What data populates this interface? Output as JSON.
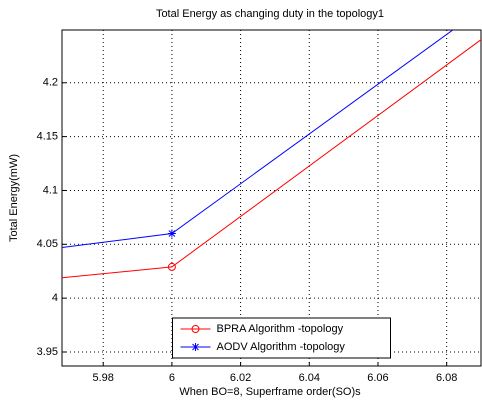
{
  "chart_data": {
    "type": "line",
    "title": "Total Energy as changing duty in the topology1",
    "x_label": "When BO=8, Superframe order(SO)s",
    "y_label": "Total Energy(mW)",
    "x": [
      5.968,
      6.0,
      6.09
    ],
    "series": [
      {
        "name": "BPRA Algorithm -topology",
        "color": "#ff0000",
        "marker": "circle",
        "values": [
          4.019,
          4.029,
          4.24
        ]
      },
      {
        "name": "AODV Algorithm -topology",
        "color": "#0000ff",
        "marker": "star",
        "values": [
          4.047,
          4.06,
          4.268
        ]
      }
    ],
    "xlim": [
      5.968,
      6.09
    ],
    "xticks": [
      5.98,
      6,
      6.02,
      6.04,
      6.06,
      6.08
    ],
    "ylim": [
      3.937,
      4.249
    ],
    "yticks": [
      3.95,
      4,
      4.05,
      4.1,
      4.15,
      4.2
    ],
    "grid": true,
    "legend": "lower center"
  }
}
